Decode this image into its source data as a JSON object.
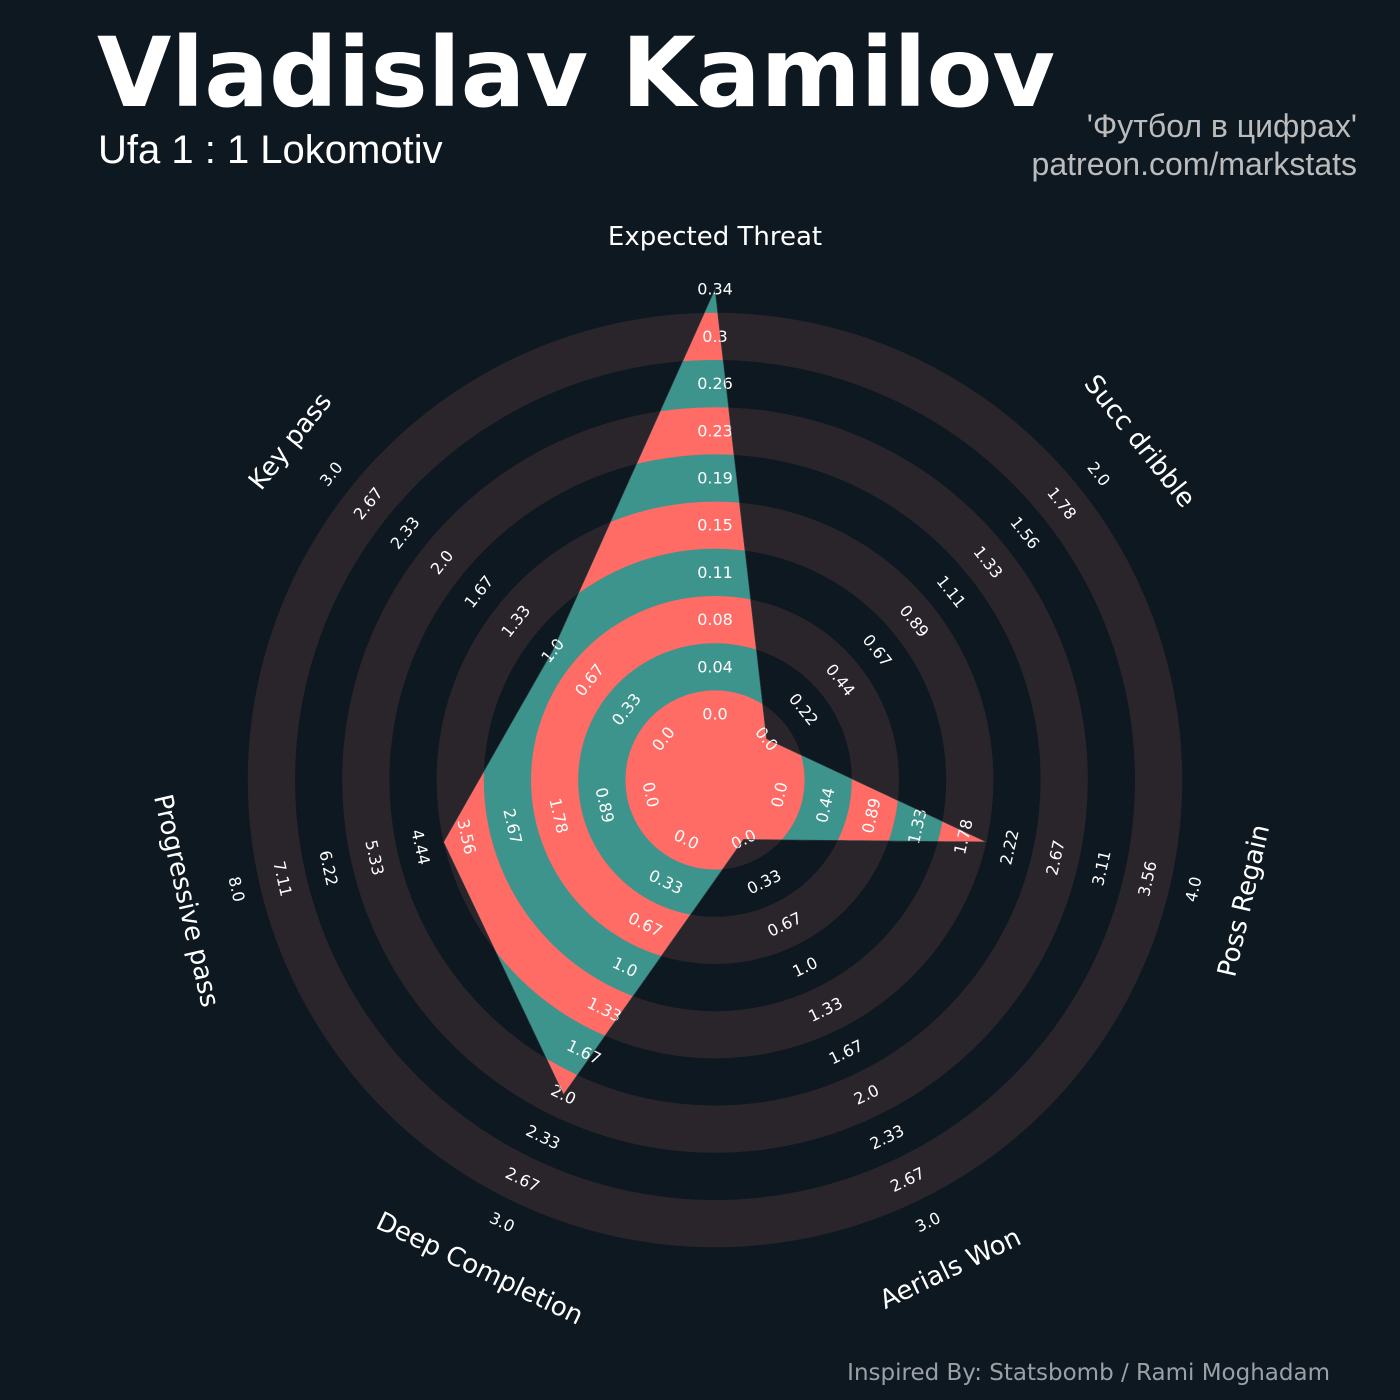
{
  "header": {
    "title": "Vladislav Kamilov",
    "subtitle": "Ufa 1 : 1 Lokomotiv",
    "credit_line1": "'Футбол в цифрах'",
    "credit_line2": "patreon.com/markstats"
  },
  "footer": {
    "text": "Inspired By: Statsbomb / Rami Moghadam"
  },
  "colors": {
    "background": "#0e1821",
    "ring": "#2a252b",
    "teal": "#3d948d",
    "coral": "#ff6b65",
    "text": "#ffffff",
    "credit": "#bcbcbc",
    "footer": "#9aa0a6"
  },
  "chart_data": {
    "type": "radar",
    "title": "Vladislav Kamilov",
    "subtitle": "Ufa 1 : 1 Lokomotiv",
    "categories": [
      "Expected Threat",
      "Succ dribble",
      "Poss Regain",
      "Aerials Won",
      "Deep Completion",
      "Progressive pass",
      "Key pass"
    ],
    "ranges": [
      [
        0,
        0.34
      ],
      [
        0,
        2.0
      ],
      [
        0,
        4.0
      ],
      [
        0,
        3.0
      ],
      [
        0,
        3.0
      ],
      [
        0,
        8.0
      ],
      [
        0,
        3.0
      ]
    ],
    "values": [
      0.34,
      0.0,
      2.0,
      0.0,
      2.0,
      4.0,
      1.0
    ],
    "tick_labels": [
      [
        "0.0",
        "0.04",
        "0.08",
        "0.11",
        "0.15",
        "0.19",
        "0.23",
        "0.26",
        "0.3",
        "0.34"
      ],
      [
        "0.0",
        "0.22",
        "0.44",
        "0.67",
        "0.89",
        "1.11",
        "1.33",
        "1.56",
        "1.78",
        "2.0"
      ],
      [
        "0.0",
        "0.44",
        "0.89",
        "1.33",
        "1.78",
        "2.22",
        "2.67",
        "3.11",
        "3.56",
        "4.0"
      ],
      [
        "0.0",
        "0.33",
        "0.67",
        "1.0",
        "1.33",
        "1.67",
        "2.0",
        "2.33",
        "2.67",
        "3.0"
      ],
      [
        "0.0",
        "0.33",
        "0.67",
        "1.0",
        "1.33",
        "1.67",
        "2.0",
        "2.33",
        "2.67",
        "3.0"
      ],
      [
        "0.0",
        "0.89",
        "1.78",
        "2.67",
        "3.56",
        "4.44",
        "5.33",
        "6.22",
        "7.11",
        "8.0"
      ],
      [
        "0.0",
        "0.33",
        "0.67",
        "1.0",
        "1.33",
        "1.67",
        "2.0",
        "2.33",
        "2.67",
        "3.0"
      ]
    ],
    "num_rings": 10,
    "ring_colors": [
      "#2a252b",
      "#0e1821"
    ],
    "polygon_colors": [
      "#ff6b65",
      "#3d948d"
    ]
  }
}
